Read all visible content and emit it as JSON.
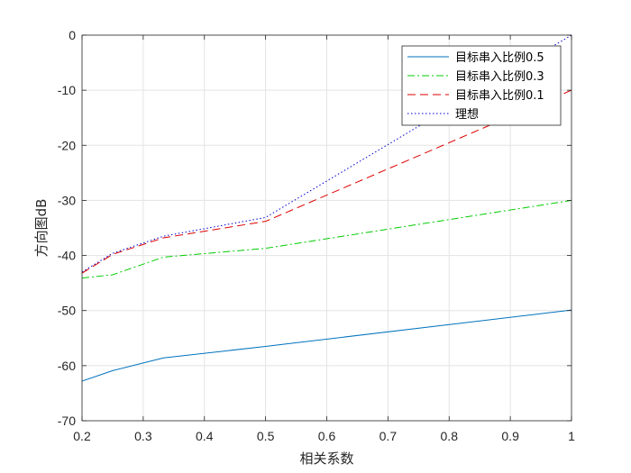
{
  "chart_data": {
    "type": "line",
    "xlabel": "相关系数",
    "ylabel": "方向图dB",
    "xlim": [
      0.2,
      1
    ],
    "ylim": [
      -70,
      0
    ],
    "xticks": [
      "0.2",
      "0.3",
      "0.4",
      "0.5",
      "0.6",
      "0.7",
      "0.8",
      "0.9",
      "1"
    ],
    "yticks": [
      "0",
      "-10",
      "-20",
      "-30",
      "-40",
      "-50",
      "-60",
      "-70"
    ],
    "grid": true,
    "legend_position": "top-right",
    "series": [
      {
        "name": "目标串入比例0.5",
        "color": "#0072BD",
        "dash": "solid",
        "x": [
          0.2,
          0.25,
          0.333,
          0.5,
          1.0
        ],
        "y": [
          -62.8,
          -60.9,
          -58.6,
          -56.5,
          -49.9
        ]
      },
      {
        "name": "目标串入比例0.3",
        "color": "#00CC00",
        "dash": "dashdot",
        "x": [
          0.2,
          0.25,
          0.333,
          0.5,
          1.0
        ],
        "y": [
          -44.1,
          -43.5,
          -40.3,
          -38.7,
          -30.0
        ]
      },
      {
        "name": "目标串入比例0.1",
        "color": "#DD0000",
        "dash": "dashed",
        "x": [
          0.2,
          0.25,
          0.333,
          0.5,
          1.0
        ],
        "y": [
          -43.2,
          -39.8,
          -36.8,
          -33.8,
          -10.0
        ]
      },
      {
        "name": "理想",
        "color": "#0000CC",
        "dash": "dotted",
        "x": [
          0.2,
          0.25,
          0.333,
          0.5,
          1.0
        ],
        "y": [
          -43.0,
          -39.6,
          -36.5,
          -33.1,
          0.0
        ]
      }
    ]
  }
}
